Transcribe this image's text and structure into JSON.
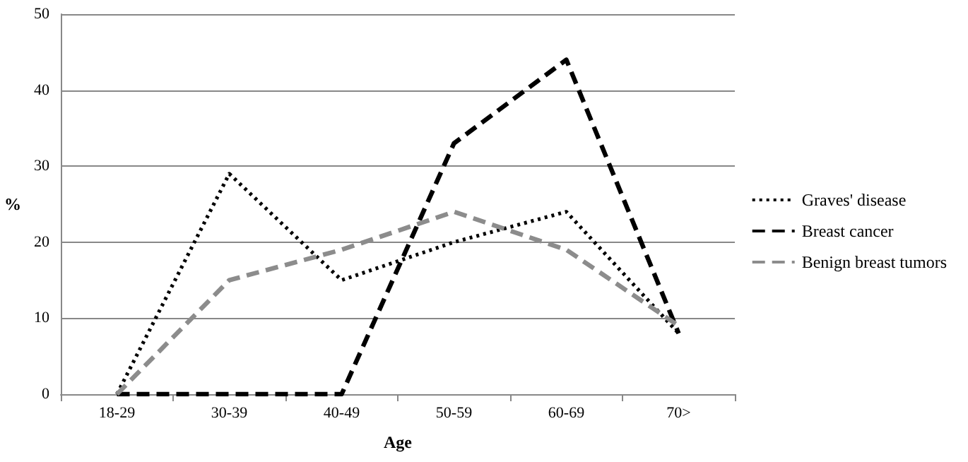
{
  "chart_data": {
    "type": "line",
    "xlabel": "Age",
    "ylabel": "%",
    "categories": [
      "18-29",
      "30-39",
      "40-49",
      "50-59",
      "60-69",
      "70>"
    ],
    "series": [
      {
        "name": "Graves' disease",
        "color": "#000000",
        "line_style": "dotted",
        "values": [
          0,
          29,
          15,
          20,
          24,
          8
        ]
      },
      {
        "name": "Breast cancer",
        "color": "#000000",
        "line_style": "dashed",
        "values": [
          0,
          0,
          0,
          33,
          44,
          8
        ]
      },
      {
        "name": "Benign breast tumors",
        "color": "#8c8c8c",
        "line_style": "dashed",
        "values": [
          0,
          15,
          19,
          24,
          19,
          9
        ]
      }
    ],
    "ylim": [
      0,
      50
    ],
    "yticks": [
      0,
      10,
      20,
      30,
      40,
      50
    ],
    "grid": "y",
    "legend": "right",
    "marker": "none"
  }
}
